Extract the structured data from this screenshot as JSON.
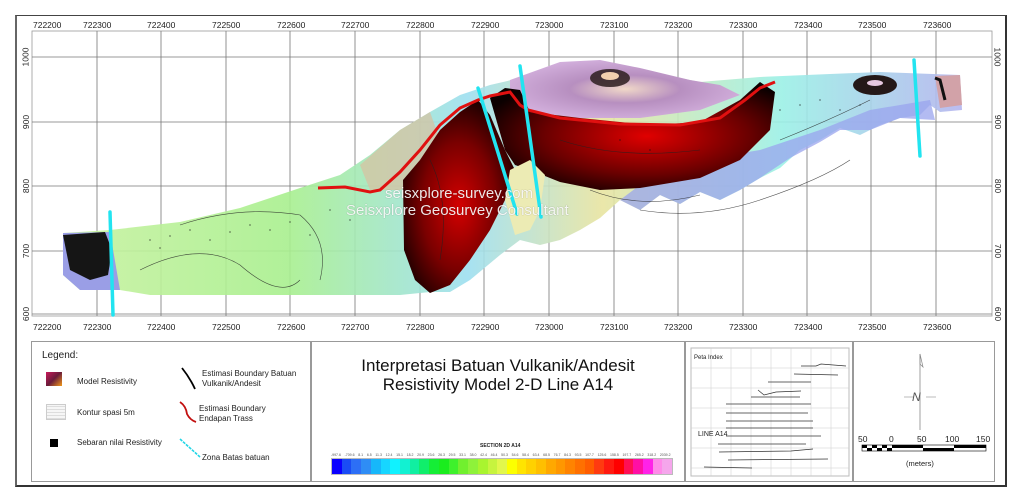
{
  "map": {
    "x_ticks": [
      "722200",
      "722300",
      "722400",
      "722500",
      "722600",
      "722700",
      "722800",
      "722900",
      "723000",
      "723100",
      "723200",
      "723300",
      "723400",
      "723500",
      "723600"
    ],
    "y_ticks": [
      "1000",
      "900",
      "800",
      "700",
      "600"
    ],
    "watermark_line1": "seisxplore-survey.com",
    "watermark_line2": "Seisxplore Geosurvey Consultant"
  },
  "legend": {
    "title": "Legend:",
    "items": [
      {
        "icon": "resistivity-swatch-icon",
        "label": "Model Resistivity"
      },
      {
        "icon": "contour-swatch-icon",
        "label": "Kontur spasi 5m"
      },
      {
        "icon": "black-square-icon",
        "label": "Sebaran nilai Resistivity"
      },
      {
        "icon": "black-line-icon",
        "label": "Estimasi Boundary Batuan Vulkanik/Andesit"
      },
      {
        "icon": "red-line-icon",
        "label": "Estimasi Boundary Endapan Trass"
      },
      {
        "icon": "cyan-dashed-line-icon",
        "label": "Zona Batas batuan"
      }
    ]
  },
  "title_block": {
    "line1": "Interpretasi Batuan Vulkanik/Andesit",
    "line2": "Resistivity Model 2-D Line A14",
    "section_label": "SECTION 2D A14",
    "colorbar_ticks": [
      "-997.6",
      "-709.6",
      "8.1",
      "6.5",
      "11.3",
      "12.4",
      "15.1",
      "18.2",
      "20.9",
      "23.6",
      "26.3",
      "29.5",
      "33.1",
      "38.0",
      "42.4",
      "46.4",
      "50.3",
      "54.6",
      "58.4",
      "63.4",
      "68.5",
      "76.7",
      "84.3",
      "93.5",
      "107.7",
      "125.6",
      "158.5",
      "197.7",
      "265.2",
      "318.2",
      "2039.2"
    ],
    "colorbar_colors": [
      "#0a00ff",
      "#1a4cf5",
      "#2d6ff6",
      "#2f8df5",
      "#17b7fa",
      "#17d6ff",
      "#10f2ff",
      "#12f1d2",
      "#11efa1",
      "#10ee6b",
      "#15ee36",
      "#1aed1e",
      "#3ef12c",
      "#71f02e",
      "#8ef23a",
      "#a9f42f",
      "#c7f43e",
      "#e2f74b",
      "#fcff00",
      "#ffe400",
      "#ffd100",
      "#ffbf00",
      "#ffa800",
      "#ff9700",
      "#ff8300",
      "#ff7000",
      "#ff5d00",
      "#ff3b10",
      "#ff1a10",
      "#ff0000",
      "#ff0f55",
      "#ff0fa5",
      "#ff22e8",
      "#ff8ae9",
      "#f5a6ec"
    ]
  },
  "index_map": {
    "title": "Peta Index",
    "line_label": "LINE A14"
  },
  "scale": {
    "north_label": "N",
    "ticks": [
      "50",
      "0",
      "50",
      "100",
      "150"
    ],
    "unit": "(meters)"
  }
}
